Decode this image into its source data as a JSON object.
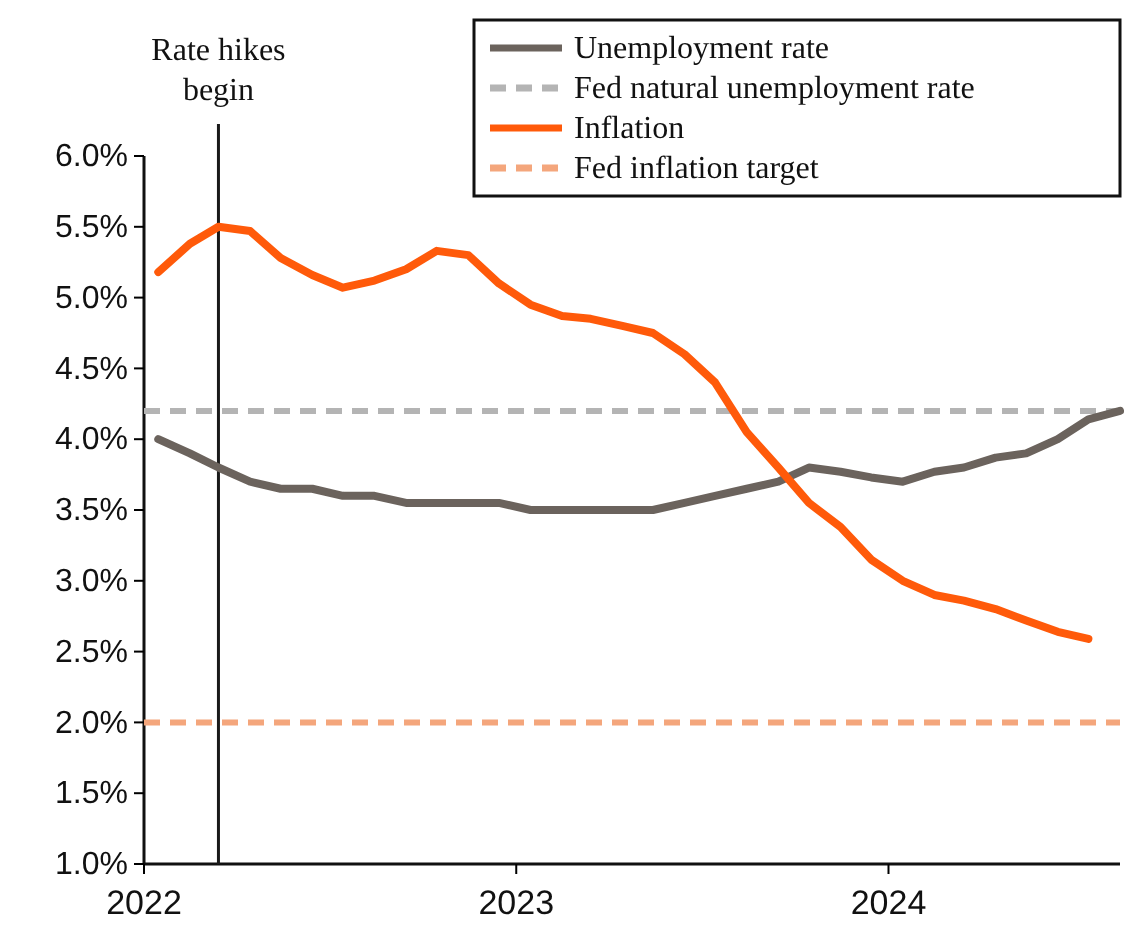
{
  "chart_data": {
    "type": "line",
    "x": [
      "2022-01-15",
      "2022-02-15",
      "2022-03-15",
      "2022-04-15",
      "2022-05-15",
      "2022-06-15",
      "2022-07-15",
      "2022-08-15",
      "2022-09-15",
      "2022-10-15",
      "2022-11-15",
      "2022-12-15",
      "2023-01-15",
      "2023-02-15",
      "2023-03-15",
      "2023-04-15",
      "2023-05-15",
      "2023-06-15",
      "2023-07-15",
      "2023-08-15",
      "2023-09-15",
      "2023-10-15",
      "2023-11-15",
      "2023-12-15",
      "2024-01-15",
      "2024-02-15",
      "2024-03-15",
      "2024-04-15",
      "2024-05-15",
      "2024-06-15",
      "2024-07-15",
      "2024-08-15"
    ],
    "series": [
      {
        "name": "Unemployment rate",
        "color": "#6b635d",
        "values": [
          4.0,
          3.9,
          3.8,
          3.7,
          3.65,
          3.65,
          3.6,
          3.6,
          3.55,
          3.55,
          3.55,
          3.55,
          3.5,
          3.5,
          3.5,
          3.5,
          3.5,
          3.55,
          3.6,
          3.65,
          3.7,
          3.8,
          3.77,
          3.73,
          3.7,
          3.77,
          3.8,
          3.87,
          3.9,
          4.0,
          4.14,
          4.2
        ]
      },
      {
        "name": "Inflation",
        "color": "#ff5a0a",
        "values": [
          5.18,
          5.38,
          5.5,
          5.47,
          5.28,
          5.16,
          5.07,
          5.12,
          5.2,
          5.33,
          5.3,
          5.1,
          4.95,
          4.87,
          4.85,
          4.8,
          4.75,
          4.6,
          4.4,
          4.05,
          3.8,
          3.55,
          3.38,
          3.15,
          3.0,
          2.9,
          2.86,
          2.8,
          2.72,
          2.64,
          2.59,
          null
        ]
      }
    ],
    "ref_lines": [
      {
        "axis": "y",
        "value": 4.2,
        "label": "Fed natural unemployment rate",
        "color": "#b4b4b4",
        "line_style": "dashed"
      },
      {
        "axis": "y",
        "value": 2.0,
        "label": "Fed inflation target",
        "color": "#f4a67c",
        "line_style": "dashed"
      },
      {
        "axis": "x",
        "value": "2022-03-15",
        "label": "Rate hikes begin",
        "color": "#1a1a1a",
        "line_style": "solid"
      }
    ],
    "xlim": [
      "2022-01-01",
      "2024-08-15"
    ],
    "xticks": [
      {
        "value": "2022-01-01",
        "label": "2022"
      },
      {
        "value": "2023-01-01",
        "label": "2023"
      },
      {
        "value": "2024-01-01",
        "label": "2024"
      }
    ],
    "ylim": [
      1.0,
      6.0
    ],
    "yticks": [
      {
        "value": 1.0,
        "label": "1.0%"
      },
      {
        "value": 1.5,
        "label": "1.5%"
      },
      {
        "value": 2.0,
        "label": "2.0%"
      },
      {
        "value": 2.5,
        "label": "2.5%"
      },
      {
        "value": 3.0,
        "label": "3.0%"
      },
      {
        "value": 3.5,
        "label": "3.5%"
      },
      {
        "value": 4.0,
        "label": "4.0%"
      },
      {
        "value": 4.5,
        "label": "4.5%"
      },
      {
        "value": 5.0,
        "label": "5.0%"
      },
      {
        "value": 5.5,
        "label": "5.5%"
      },
      {
        "value": 6.0,
        "label": "6.0%"
      }
    ],
    "grid": false,
    "legend": "top right",
    "marker": "none",
    "line_style": "solid"
  }
}
